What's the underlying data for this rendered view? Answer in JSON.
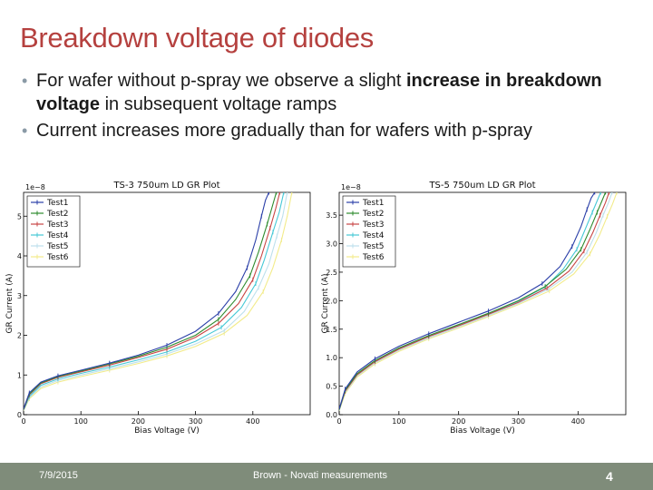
{
  "slide": {
    "title": "Breakdown voltage of diodes",
    "bullets": [
      {
        "pre": "For wafer without p-spray we observe a slight ",
        "bold": "increase in breakdown voltage",
        "post": " in subsequent voltage ramps"
      },
      {
        "pre": "Current increases more gradually than for wafers with p-spray",
        "bold": "",
        "post": ""
      }
    ]
  },
  "footer": {
    "date": "7/9/2015",
    "center": "Brown - Novati measurements",
    "page": "4",
    "background_color": "#7f8c7a"
  },
  "chart_data": [
    {
      "type": "line",
      "title": "TS-3 750um LD GR Plot",
      "xlabel": "Bias Voltage (V)",
      "ylabel": "GR Current (A)",
      "scale_label": "1e−8",
      "xlim": [
        0,
        500
      ],
      "ylim": [
        0,
        5.6
      ],
      "xticks": [
        0,
        100,
        200,
        300,
        400
      ],
      "yticks": [
        0,
        1,
        2,
        3,
        4,
        5
      ],
      "ytick_labels": [
        "0",
        "1",
        "2",
        "3",
        "4",
        "5"
      ],
      "legend_position": "top-left",
      "series": [
        {
          "name": "Test1",
          "color": "#2b3fa8",
          "x": [
            0,
            10,
            30,
            60,
            100,
            150,
            200,
            250,
            300,
            340,
            370,
            390,
            405,
            415,
            422,
            428
          ],
          "y": [
            0.15,
            0.55,
            0.82,
            0.98,
            1.12,
            1.3,
            1.5,
            1.75,
            2.1,
            2.55,
            3.1,
            3.7,
            4.4,
            5.0,
            5.4,
            5.6
          ]
        },
        {
          "name": "Test2",
          "color": "#2e8b2e",
          "x": [
            0,
            10,
            30,
            60,
            100,
            150,
            200,
            250,
            300,
            340,
            370,
            395,
            410,
            425,
            435,
            441
          ],
          "y": [
            0.14,
            0.52,
            0.8,
            0.96,
            1.1,
            1.28,
            1.47,
            1.7,
            2.0,
            2.4,
            2.9,
            3.5,
            4.1,
            4.8,
            5.3,
            5.6
          ]
        },
        {
          "name": "Test3",
          "color": "#c84545",
          "x": [
            0,
            10,
            30,
            60,
            100,
            150,
            200,
            250,
            300,
            340,
            375,
            400,
            415,
            430,
            440,
            447
          ],
          "y": [
            0.13,
            0.5,
            0.78,
            0.94,
            1.08,
            1.25,
            1.44,
            1.65,
            1.95,
            2.3,
            2.8,
            3.4,
            4.0,
            4.7,
            5.2,
            5.6
          ]
        },
        {
          "name": "Test4",
          "color": "#45c8d6",
          "x": [
            0,
            10,
            30,
            60,
            100,
            150,
            200,
            250,
            300,
            345,
            380,
            405,
            420,
            435,
            446,
            454
          ],
          "y": [
            0.12,
            0.46,
            0.74,
            0.9,
            1.04,
            1.2,
            1.38,
            1.58,
            1.85,
            2.2,
            2.7,
            3.3,
            3.9,
            4.6,
            5.1,
            5.6
          ]
        },
        {
          "name": "Test5",
          "color": "#bde0ec",
          "x": [
            0,
            10,
            30,
            60,
            100,
            150,
            200,
            250,
            300,
            350,
            385,
            410,
            428,
            442,
            452,
            460
          ],
          "y": [
            0.11,
            0.43,
            0.7,
            0.86,
            1.0,
            1.16,
            1.33,
            1.53,
            1.78,
            2.12,
            2.6,
            3.2,
            3.8,
            4.5,
            5.0,
            5.6
          ]
        },
        {
          "name": "Test6",
          "color": "#f2eb8a",
          "x": [
            0,
            10,
            30,
            60,
            100,
            150,
            200,
            250,
            300,
            350,
            390,
            418,
            435,
            450,
            460,
            468
          ],
          "y": [
            0.1,
            0.4,
            0.66,
            0.82,
            0.96,
            1.12,
            1.29,
            1.48,
            1.72,
            2.05,
            2.5,
            3.1,
            3.7,
            4.4,
            5.0,
            5.6
          ]
        }
      ]
    },
    {
      "type": "line",
      "title": "TS-5 750um LD GR Plot",
      "xlabel": "Bias Voltage (V)",
      "ylabel": "GR Current (A)",
      "scale_label": "1e−8",
      "xlim": [
        0,
        480
      ],
      "ylim": [
        0,
        3.9
      ],
      "xticks": [
        0,
        100,
        200,
        300,
        400
      ],
      "yticks": [
        0,
        0.5,
        1.0,
        1.5,
        2.0,
        2.5,
        3.0,
        3.5
      ],
      "ytick_labels": [
        "0.0",
        "0.5",
        "1.0",
        "1.5",
        "2.0",
        "2.5",
        "3.0",
        "3.5"
      ],
      "legend_position": "top-left",
      "series": [
        {
          "name": "Test1",
          "color": "#2b3fa8",
          "x": [
            0,
            10,
            30,
            60,
            100,
            150,
            200,
            250,
            300,
            340,
            370,
            390,
            405,
            415,
            422,
            428
          ],
          "y": [
            0.1,
            0.45,
            0.75,
            0.98,
            1.2,
            1.42,
            1.62,
            1.82,
            2.05,
            2.3,
            2.6,
            2.95,
            3.3,
            3.6,
            3.8,
            3.9
          ]
        },
        {
          "name": "Test2",
          "color": "#2e8b2e",
          "x": [
            0,
            10,
            30,
            60,
            100,
            150,
            200,
            250,
            300,
            345,
            380,
            405,
            420,
            432,
            440,
            446
          ],
          "y": [
            0.09,
            0.43,
            0.72,
            0.95,
            1.17,
            1.39,
            1.58,
            1.78,
            2.0,
            2.25,
            2.55,
            2.9,
            3.25,
            3.55,
            3.75,
            3.9
          ]
        },
        {
          "name": "Test3",
          "color": "#c84545",
          "x": [
            0,
            10,
            30,
            60,
            100,
            150,
            200,
            250,
            300,
            348,
            385,
            410,
            425,
            437,
            446,
            452
          ],
          "y": [
            0.09,
            0.41,
            0.7,
            0.93,
            1.15,
            1.37,
            1.56,
            1.76,
            1.97,
            2.22,
            2.52,
            2.87,
            3.2,
            3.5,
            3.72,
            3.9
          ]
        },
        {
          "name": "Test4",
          "color": "#45c8d6",
          "x": [
            0,
            10,
            30,
            60,
            100,
            150,
            200,
            250,
            300,
            345,
            375,
            398,
            412,
            424,
            432,
            438
          ],
          "y": [
            0.08,
            0.42,
            0.71,
            0.94,
            1.16,
            1.38,
            1.57,
            1.77,
            1.99,
            2.24,
            2.55,
            2.9,
            3.25,
            3.55,
            3.75,
            3.9
          ]
        },
        {
          "name": "Test5",
          "color": "#bde0ec",
          "x": [
            0,
            10,
            30,
            60,
            100,
            150,
            200,
            250,
            300,
            350,
            390,
            415,
            430,
            442,
            451,
            457
          ],
          "y": [
            0.08,
            0.39,
            0.68,
            0.91,
            1.13,
            1.35,
            1.54,
            1.74,
            1.95,
            2.2,
            2.5,
            2.85,
            3.18,
            3.5,
            3.72,
            3.9
          ]
        },
        {
          "name": "Test6",
          "color": "#f2eb8a",
          "x": [
            0,
            10,
            30,
            60,
            100,
            150,
            200,
            250,
            300,
            352,
            393,
            420,
            436,
            449,
            458,
            465
          ],
          "y": [
            0.07,
            0.37,
            0.66,
            0.89,
            1.11,
            1.33,
            1.52,
            1.72,
            1.93,
            2.17,
            2.47,
            2.82,
            3.15,
            3.48,
            3.7,
            3.9
          ]
        }
      ]
    }
  ]
}
